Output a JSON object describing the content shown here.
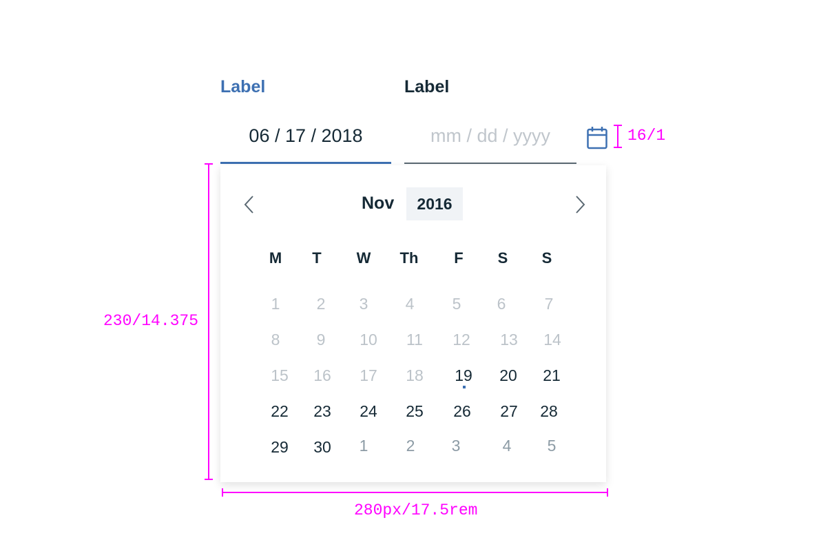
{
  "field_active": {
    "label": "Label",
    "value": "06 / 17 / 2018"
  },
  "field_default": {
    "label": "Label",
    "placeholder": "mm / dd / yyyy"
  },
  "calendar": {
    "month": "Nov",
    "year": "2016",
    "weekdays": [
      "M",
      "T",
      "W",
      "Th",
      "F",
      "S",
      "S"
    ],
    "weeks": [
      [
        [
          "1",
          "prev"
        ],
        [
          "2",
          "prev"
        ],
        [
          "3",
          "prev"
        ],
        [
          "4",
          "prev"
        ],
        [
          "5",
          "prev"
        ],
        [
          "6",
          "prev"
        ],
        [
          "7",
          "prev"
        ]
      ],
      [
        [
          "8",
          "prev"
        ],
        [
          "9",
          "prev"
        ],
        [
          "10",
          "prev"
        ],
        [
          "11",
          "prev"
        ],
        [
          "12",
          "prev"
        ],
        [
          "13",
          "prev"
        ],
        [
          "14",
          "prev"
        ]
      ],
      [
        [
          "15",
          "prev"
        ],
        [
          "16",
          "prev"
        ],
        [
          "17",
          "prev"
        ],
        [
          "18",
          "prev"
        ],
        [
          "19",
          "today"
        ],
        [
          "20",
          "cur"
        ],
        [
          "21",
          "cur"
        ]
      ],
      [
        [
          "22",
          "cur"
        ],
        [
          "23",
          "cur"
        ],
        [
          "24",
          "cur"
        ],
        [
          "25",
          "cur"
        ],
        [
          "26",
          "cur"
        ],
        [
          "27",
          "cur"
        ],
        [
          "28",
          "cur"
        ]
      ],
      [
        [
          "29",
          "cur"
        ],
        [
          "30",
          "cur"
        ],
        [
          "1",
          "next"
        ],
        [
          "2",
          "next"
        ],
        [
          "3",
          "next"
        ],
        [
          "4",
          "next"
        ],
        [
          "5",
          "next"
        ]
      ]
    ]
  },
  "annotations": {
    "icon_size": "16/1",
    "panel_height": "230/14.375",
    "panel_width": "280px/17.5rem"
  },
  "colors": {
    "accent": "#3d70b2",
    "text": "#152935",
    "annotation": "#ff00ff",
    "disabled": "#bcc3c9"
  }
}
